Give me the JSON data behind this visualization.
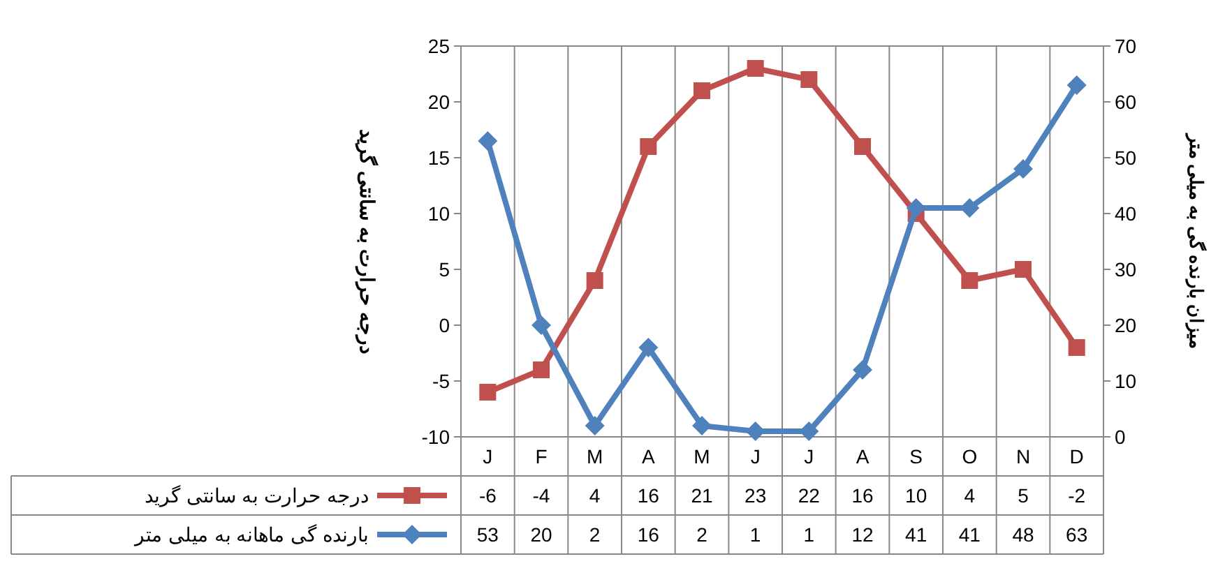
{
  "chart_data": {
    "type": "line",
    "ylabel": "درجه حرارت به سانتی گرید",
    "y2label": "میزان بارنده گی به میلی متر",
    "categories": [
      "J",
      "F",
      "M",
      "A",
      "M",
      "J",
      "J",
      "A",
      "S",
      "O",
      "N",
      "D"
    ],
    "series": [
      {
        "name": "درجه حرارت به سانتی گرید",
        "color": "#c0504d",
        "marker": "square",
        "values": [
          -6,
          -4,
          4,
          16,
          21,
          23,
          22,
          16,
          10,
          4,
          5,
          -2
        ]
      },
      {
        "name": "بارنده گی ماهانه به میلی متر",
        "color": "#4f81bd",
        "marker": "diamond",
        "axis": "y2",
        "values": [
          53,
          20,
          2,
          16,
          2,
          1,
          1,
          12,
          41,
          41,
          48,
          63
        ]
      }
    ],
    "ylim": [
      -10,
      25
    ],
    "yticks": [
      -10,
      -5,
      0,
      5,
      10,
      15,
      20,
      25
    ],
    "y2lim": [
      0,
      70
    ],
    "y2ticks": [
      0,
      10,
      20,
      30,
      40,
      50,
      60,
      70
    ],
    "grid": "x",
    "legend": "bottom",
    "data_labels": true
  }
}
